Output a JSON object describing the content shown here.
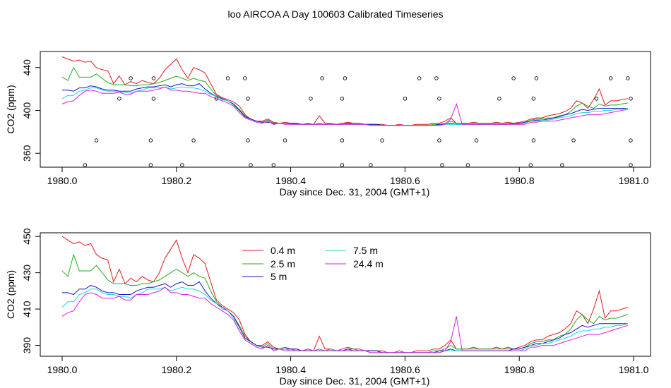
{
  "page_title": "loo AIRCOA A  Day 100603  Calibrated Timeseries",
  "colors": {
    "0.4 m": "#e41a1c",
    "2.5 m": "#1fae1f",
    "5 m": "#1515c8",
    "7.5 m": "#17d7d7",
    "24.4 m": "#e01ee0"
  },
  "chart_data": [
    {
      "type": "line",
      "title": "",
      "xlabel": "Day since Dec. 31, 2004 (GMT+1)",
      "ylabel": "CO2 (ppm)",
      "xlim": [
        1980.0,
        1981.0
      ],
      "ylim": [
        347,
        455
      ],
      "xticks": [
        "1980.0",
        "1980.2",
        "1980.4",
        "1980.6",
        "1980.8",
        "1981.0"
      ],
      "yticks": [
        "360",
        "400",
        "440"
      ],
      "x": [
        1980.0,
        1980.01,
        1980.02,
        1980.03,
        1980.04,
        1980.05,
        1980.06,
        1980.07,
        1980.08,
        1980.09,
        1980.1,
        1980.11,
        1980.12,
        1980.13,
        1980.14,
        1980.15,
        1980.16,
        1980.17,
        1980.18,
        1980.19,
        1980.2,
        1980.21,
        1980.22,
        1980.23,
        1980.24,
        1980.25,
        1980.26,
        1980.27,
        1980.28,
        1980.29,
        1980.3,
        1980.31,
        1980.32,
        1980.33,
        1980.34,
        1980.35,
        1980.36,
        1980.37,
        1980.38,
        1980.39,
        1980.4,
        1980.41,
        1980.42,
        1980.43,
        1980.44,
        1980.45,
        1980.46,
        1980.47,
        1980.48,
        1980.49,
        1980.5,
        1980.51,
        1980.52,
        1980.53,
        1980.54,
        1980.55,
        1980.56,
        1980.57,
        1980.58,
        1980.59,
        1980.6,
        1980.61,
        1980.62,
        1980.63,
        1980.64,
        1980.65,
        1980.66,
        1980.67,
        1980.68,
        1980.69,
        1980.7,
        1980.71,
        1980.72,
        1980.73,
        1980.74,
        1980.75,
        1980.76,
        1980.77,
        1980.78,
        1980.79,
        1980.8,
        1980.81,
        1980.82,
        1980.83,
        1980.84,
        1980.85,
        1980.86,
        1980.87,
        1980.88,
        1980.89,
        1980.9,
        1980.91,
        1980.92,
        1980.93,
        1980.94,
        1980.95,
        1980.96,
        1980.97,
        1980.98,
        1980.99
      ],
      "series": [
        {
          "name": "0.4 m",
          "color": "#e41a1c",
          "values": [
            450,
            448,
            446,
            447,
            445,
            446,
            440,
            438,
            437,
            425,
            432,
            424,
            427,
            425,
            428,
            426,
            425,
            430,
            438,
            443,
            448,
            438,
            430,
            440,
            438,
            435,
            425,
            415,
            412,
            410,
            408,
            404,
            396,
            392,
            390,
            390,
            392,
            389,
            388,
            389,
            388,
            388,
            387,
            388,
            387,
            395,
            388,
            388,
            387,
            388,
            389,
            388,
            388,
            387,
            387,
            387,
            387,
            386,
            386,
            387,
            386,
            386,
            387,
            387,
            387,
            388,
            388,
            390,
            393,
            388,
            388,
            388,
            389,
            388,
            388,
            388,
            389,
            388,
            389,
            388,
            389,
            390,
            392,
            393,
            393,
            395,
            396,
            397,
            399,
            402,
            409,
            407,
            402,
            410,
            420,
            405,
            409,
            409,
            410,
            411
          ]
        },
        {
          "name": "2.5 m",
          "color": "#1fae1f",
          "values": [
            431,
            428,
            440,
            431,
            431,
            431,
            434,
            430,
            426,
            424,
            424,
            424,
            423,
            423,
            424,
            424,
            425,
            426,
            428,
            430,
            432,
            430,
            428,
            430,
            428,
            427,
            420,
            414,
            411,
            409,
            406,
            401,
            395,
            392,
            390,
            389,
            391,
            388,
            388,
            388,
            388,
            387,
            387,
            387,
            387,
            388,
            387,
            388,
            387,
            387,
            388,
            388,
            387,
            387,
            387,
            387,
            386,
            386,
            386,
            386,
            386,
            386,
            386,
            386,
            386,
            387,
            387,
            388,
            390,
            388,
            388,
            388,
            388,
            388,
            388,
            388,
            388,
            388,
            388,
            388,
            388,
            389,
            391,
            392,
            392,
            393,
            393,
            395,
            396,
            399,
            404,
            407,
            404,
            402,
            406,
            404,
            405,
            405,
            406,
            407
          ]
        },
        {
          "name": "5 m",
          "color": "#1515c8",
          "values": [
            419,
            419,
            418,
            421,
            421,
            423,
            422,
            420,
            419,
            419,
            418,
            418,
            418,
            420,
            421,
            422,
            422,
            423,
            424,
            422,
            424,
            425,
            423,
            423,
            425,
            420,
            416,
            413,
            411,
            409,
            406,
            400,
            394,
            392,
            390,
            389,
            389,
            388,
            388,
            388,
            388,
            388,
            387,
            387,
            387,
            387,
            387,
            387,
            387,
            387,
            388,
            387,
            387,
            387,
            387,
            387,
            386,
            386,
            386,
            386,
            386,
            386,
            386,
            386,
            386,
            386,
            387,
            387,
            388,
            387,
            387,
            387,
            387,
            387,
            387,
            387,
            387,
            387,
            387,
            388,
            388,
            389,
            390,
            391,
            391,
            392,
            393,
            394,
            396,
            397,
            399,
            401,
            400,
            401,
            402,
            402,
            402,
            402,
            402,
            402
          ]
        },
        {
          "name": "7.5 m",
          "color": "#17d7d7",
          "values": [
            411,
            414,
            414,
            418,
            419,
            421,
            421,
            419,
            418,
            418,
            417,
            417,
            416,
            418,
            419,
            421,
            421,
            421,
            422,
            420,
            421,
            422,
            421,
            421,
            420,
            418,
            415,
            413,
            410,
            409,
            405,
            398,
            393,
            391,
            389,
            388,
            390,
            387,
            388,
            388,
            387,
            387,
            387,
            387,
            387,
            387,
            387,
            387,
            387,
            387,
            387,
            387,
            387,
            387,
            386,
            386,
            386,
            386,
            386,
            386,
            386,
            386,
            386,
            386,
            386,
            386,
            386,
            387,
            387,
            387,
            387,
            387,
            387,
            387,
            387,
            387,
            387,
            387,
            387,
            387,
            387,
            388,
            390,
            390,
            391,
            391,
            392,
            393,
            394,
            395,
            397,
            398,
            398,
            399,
            399,
            400,
            400,
            401,
            401,
            402
          ]
        },
        {
          "name": "24.4 m",
          "color": "#e01ee0",
          "values": [
            406,
            408,
            409,
            414,
            418,
            419,
            418,
            416,
            416,
            416,
            417,
            415,
            415,
            418,
            418,
            418,
            419,
            420,
            422,
            419,
            419,
            418,
            418,
            417,
            416,
            416,
            413,
            411,
            409,
            407,
            404,
            398,
            393,
            391,
            389,
            388,
            390,
            387,
            388,
            387,
            387,
            387,
            387,
            387,
            387,
            387,
            387,
            387,
            387,
            387,
            387,
            387,
            387,
            387,
            386,
            386,
            386,
            386,
            386,
            386,
            386,
            386,
            386,
            386,
            386,
            386,
            386,
            387,
            392,
            406,
            387,
            387,
            387,
            387,
            387,
            387,
            387,
            387,
            387,
            387,
            387,
            387,
            389,
            389,
            390,
            390,
            390,
            391,
            392,
            393,
            394,
            395,
            396,
            396,
            396,
            397,
            398,
            399,
            400,
            401
          ]
        }
      ],
      "markers": {
        "shape": "open-circle",
        "points": [
          [
            1980.04,
            349
          ],
          [
            1980.06,
            372
          ],
          [
            1980.1,
            411
          ],
          [
            1980.12,
            430
          ],
          [
            1980.155,
            349
          ],
          [
            1980.155,
            372
          ],
          [
            1980.16,
            411
          ],
          [
            1980.16,
            430
          ],
          [
            1980.21,
            349
          ],
          [
            1980.23,
            372
          ],
          [
            1980.27,
            411
          ],
          [
            1980.29,
            430
          ],
          [
            1980.32,
            430
          ],
          [
            1980.325,
            411
          ],
          [
            1980.325,
            372
          ],
          [
            1980.33,
            349
          ],
          [
            1980.37,
            349
          ],
          [
            1980.39,
            372
          ],
          [
            1980.435,
            411
          ],
          [
            1980.455,
            430
          ],
          [
            1980.49,
            349
          ],
          [
            1980.49,
            372
          ],
          [
            1980.49,
            411
          ],
          [
            1980.495,
            430
          ],
          [
            1980.54,
            349
          ],
          [
            1980.56,
            372
          ],
          [
            1980.6,
            411
          ],
          [
            1980.625,
            430
          ],
          [
            1980.655,
            430
          ],
          [
            1980.66,
            411
          ],
          [
            1980.66,
            372
          ],
          [
            1980.665,
            349
          ],
          [
            1980.71,
            349
          ],
          [
            1980.725,
            372
          ],
          [
            1980.765,
            411
          ],
          [
            1980.79,
            430
          ],
          [
            1980.82,
            349
          ],
          [
            1980.825,
            372
          ],
          [
            1980.825,
            411
          ],
          [
            1980.83,
            430
          ],
          [
            1980.875,
            349
          ],
          [
            1980.895,
            372
          ],
          [
            1980.935,
            411
          ],
          [
            1980.96,
            430
          ],
          [
            1980.99,
            430
          ],
          [
            1980.995,
            372
          ],
          [
            1980.995,
            411
          ],
          [
            1980.995,
            349
          ]
        ]
      }
    },
    {
      "type": "line",
      "title": "",
      "xlabel": "Day since Dec. 31, 2004 (GMT+1)",
      "ylabel": "CO2 (ppm)",
      "xlim": [
        1980.0,
        1981.0
      ],
      "ylim": [
        384,
        452
      ],
      "xticks": [
        "1980.0",
        "1980.2",
        "1980.4",
        "1980.6",
        "1980.8",
        "1981.0"
      ],
      "yticks": [
        "390",
        "410",
        "430",
        "450"
      ],
      "legend": {
        "placement": "top-center",
        "entries": [
          "0.4 m",
          "2.5 m",
          "5 m",
          "7.5 m",
          "24.4 m"
        ]
      },
      "uses_series_of_chart": 0
    }
  ]
}
